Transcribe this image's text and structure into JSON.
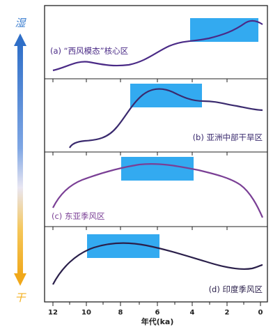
{
  "scale": {
    "wet_label": "湿",
    "dry_label": "干"
  },
  "panels": [
    {
      "label": "(a) “西风模态”核心区",
      "color": "#4a2a86"
    },
    {
      "label": "(b) 亚洲中部干旱区",
      "color": "#3a2a6e"
    },
    {
      "label": "(c) 东亚季风区",
      "color": "#7a3f95"
    },
    {
      "label": "(d) 印度季风区",
      "color": "#2a1f4a"
    }
  ],
  "axis": {
    "ticks": [
      "12",
      "10",
      "8",
      "6",
      "4",
      "2",
      "0"
    ],
    "label": "年代(ka)"
  },
  "colors": {
    "frame": "#222222",
    "highlight": "#33aaf0",
    "arrow_top": "#3d7fd0",
    "arrow_bottom": "#f3b020",
    "wet_text": "#3d7fd0",
    "dry_text": "#f3b020"
  }
}
